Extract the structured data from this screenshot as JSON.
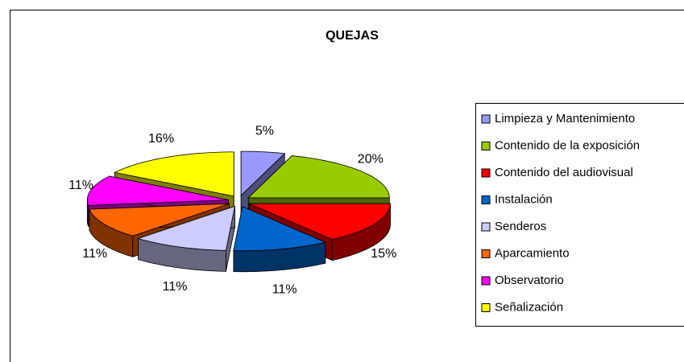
{
  "chart_data": {
    "type": "pie3d",
    "title": "QUEJAS",
    "categories": [
      "Limpieza y Mantenimiento",
      "Contenido de la exposición",
      "Contenido del audiovisual",
      "Instalación",
      "Senderos",
      "Aparcamiento",
      "Observatorio",
      "Señalización"
    ],
    "values": [
      5,
      20,
      15,
      11,
      11,
      11,
      11,
      16
    ],
    "value_labels": [
      "5%",
      "20%",
      "15%",
      "11%",
      "11%",
      "11%",
      "11%",
      "16%"
    ],
    "colors": [
      "#9999ff",
      "#99cc00",
      "#ff0000",
      "#0066cc",
      "#ccccff",
      "#ff6600",
      "#ff00ff",
      "#ffff00"
    ],
    "legend": "right"
  }
}
